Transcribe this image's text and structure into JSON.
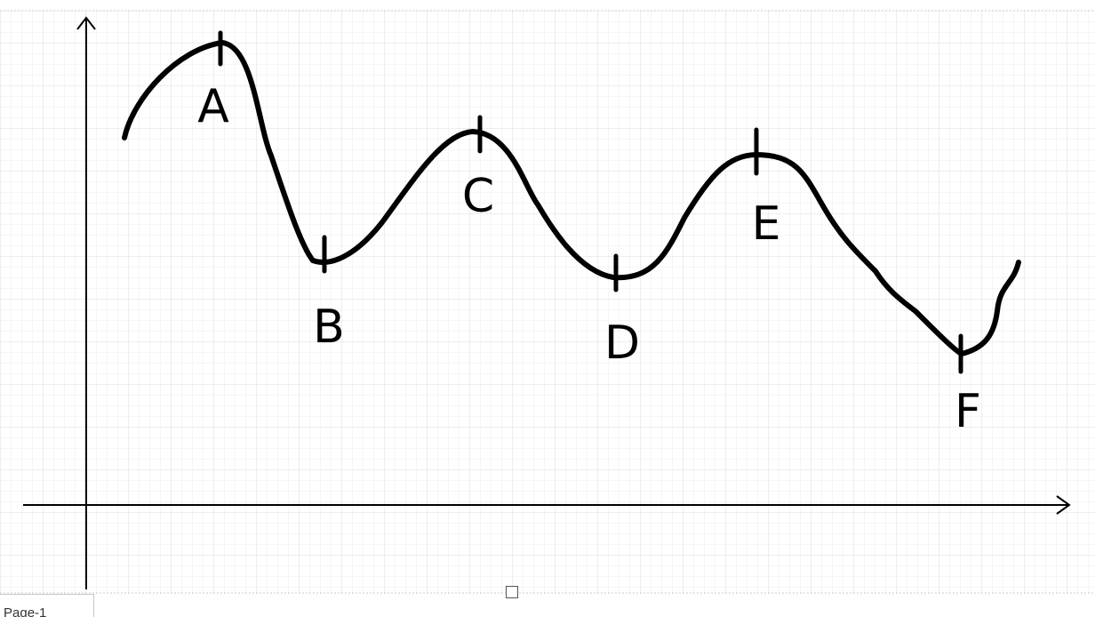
{
  "canvas": {
    "background": "#ffffff",
    "grid_color": "#e6e6e6",
    "grid": true,
    "page_border_color": "#c8c8c8"
  },
  "diagram": {
    "axes": {
      "color": "#000000",
      "x_axis": {
        "has_arrow": true
      },
      "y_axis": {
        "has_arrow": true
      }
    },
    "curve": {
      "stroke_color": "#000000",
      "style": "hand-drawn"
    },
    "points": [
      {
        "label": "A",
        "kind": "peak"
      },
      {
        "label": "B",
        "kind": "trough"
      },
      {
        "label": "C",
        "kind": "peak"
      },
      {
        "label": "D",
        "kind": "trough"
      },
      {
        "label": "E",
        "kind": "peak"
      },
      {
        "label": "F",
        "kind": "trough"
      }
    ]
  },
  "page_tab": {
    "label": "Page-1"
  },
  "icons": {
    "resize_handle": "square-handle-icon"
  }
}
